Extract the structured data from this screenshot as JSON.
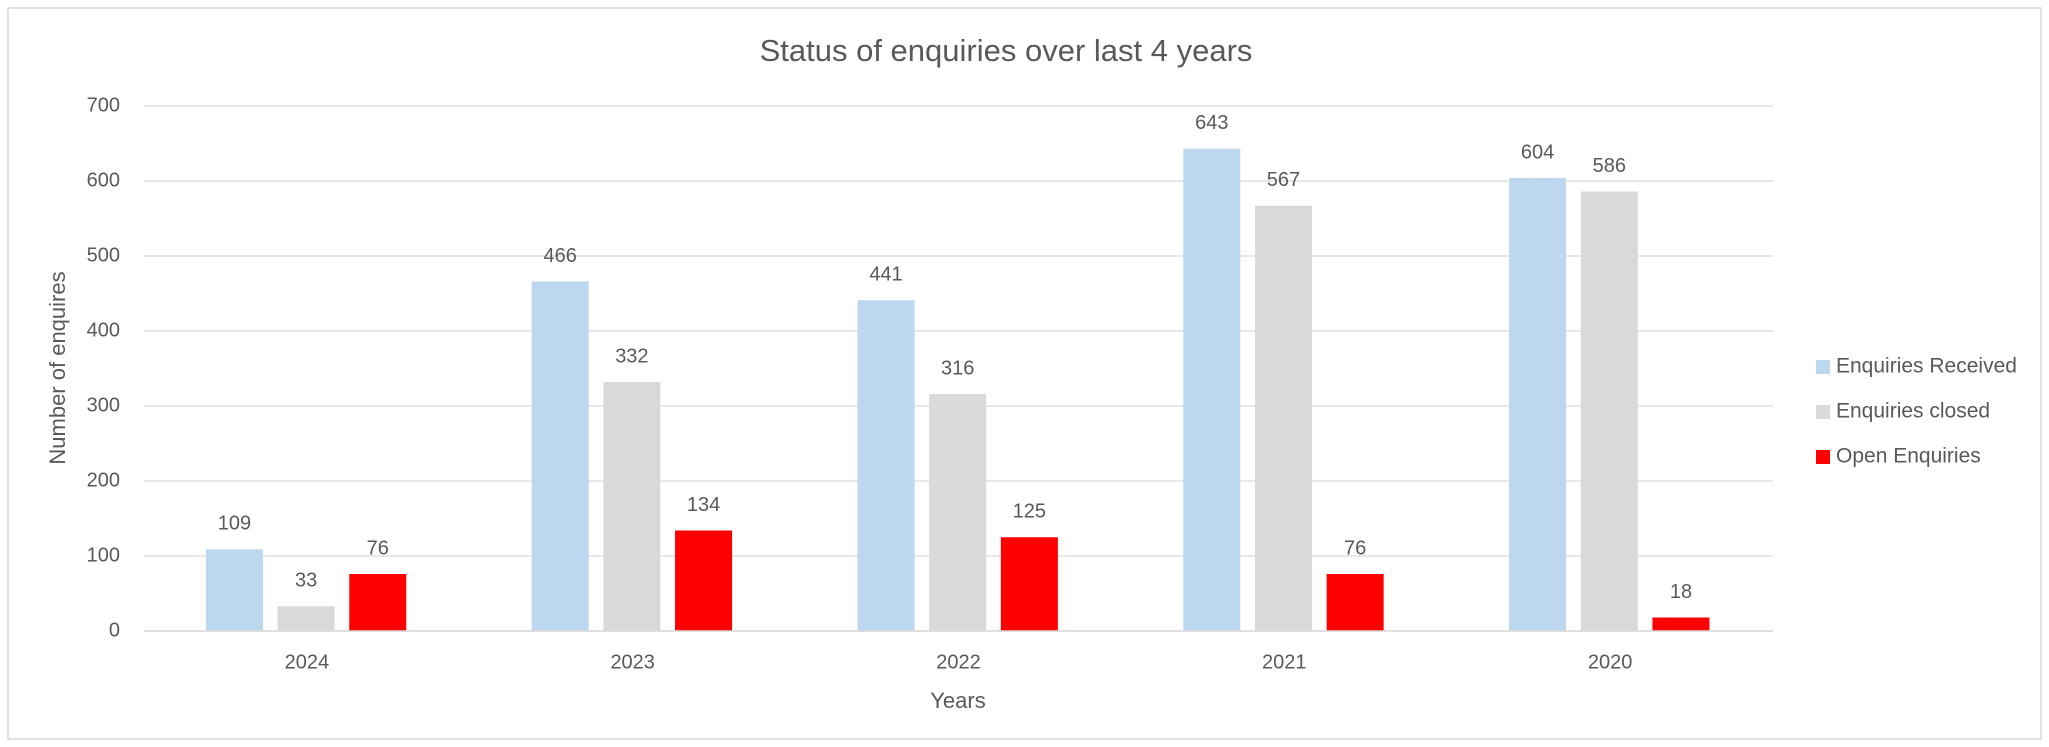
{
  "chart_data": {
    "type": "bar",
    "title": "Status of enquiries over last 4 years",
    "x_label": "Years",
    "y_label": "Number of enquires",
    "categories": [
      "2024",
      "2023",
      "2022",
      "2021",
      "2020"
    ],
    "series": [
      {
        "name": "Enquiries Received",
        "color": "#bdd7ee",
        "values": [
          109,
          466,
          441,
          643,
          604
        ]
      },
      {
        "name": "Enquiries closed",
        "color": "#d9d9d9",
        "values": [
          33,
          332,
          316,
          567,
          586
        ]
      },
      {
        "name": "Open Enquiries",
        "color": "#ff0000",
        "values": [
          76,
          134,
          125,
          76,
          18
        ]
      }
    ],
    "ylim": [
      0,
      700
    ],
    "yticks": [
      0,
      100,
      200,
      300,
      400,
      500,
      600,
      700
    ],
    "grid": true,
    "legend": "right",
    "data_labels": true
  }
}
